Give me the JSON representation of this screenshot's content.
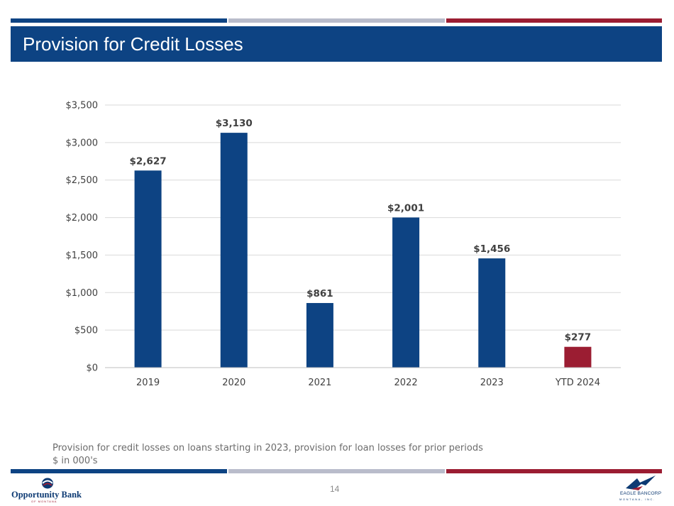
{
  "header": {
    "title": "Provision for Credit Losses"
  },
  "colors": {
    "navy": "#0d4383",
    "gray": "#b9bccb",
    "red": "#9b1d32",
    "grid": "#d9d9d9"
  },
  "chart_data": {
    "type": "bar",
    "title": "",
    "xlabel": "",
    "ylabel": "",
    "categories": [
      "2019",
      "2020",
      "2021",
      "2022",
      "2023",
      "YTD 2024"
    ],
    "values": [
      2627,
      3130,
      861,
      2001,
      1456,
      277
    ],
    "value_labels": [
      "$2,627",
      "$3,130",
      "$861",
      "$2,001",
      "$1,456",
      "$277"
    ],
    "highlight_index": 5,
    "ylim": [
      0,
      3500
    ],
    "yticks": [
      0,
      500,
      1000,
      1500,
      2000,
      2500,
      3000,
      3500
    ],
    "ytick_labels": [
      "$0",
      "$500",
      "$1,000",
      "$1,500",
      "$2,000",
      "$2,500",
      "$3,000",
      "$3,500"
    ],
    "grid": true,
    "legend": "none"
  },
  "footnotes": [
    "Provision for credit losses on loans starting in 2023, provision for loan losses for prior periods",
    "$ in 000's"
  ],
  "footer": {
    "page_number": "14",
    "logo_left": {
      "brand": "Opportunity Bank",
      "sub": "OF MONTANA"
    },
    "logo_right": {
      "brand": "EAGLE BANCORP",
      "sub": "MONTANA, INC."
    }
  }
}
